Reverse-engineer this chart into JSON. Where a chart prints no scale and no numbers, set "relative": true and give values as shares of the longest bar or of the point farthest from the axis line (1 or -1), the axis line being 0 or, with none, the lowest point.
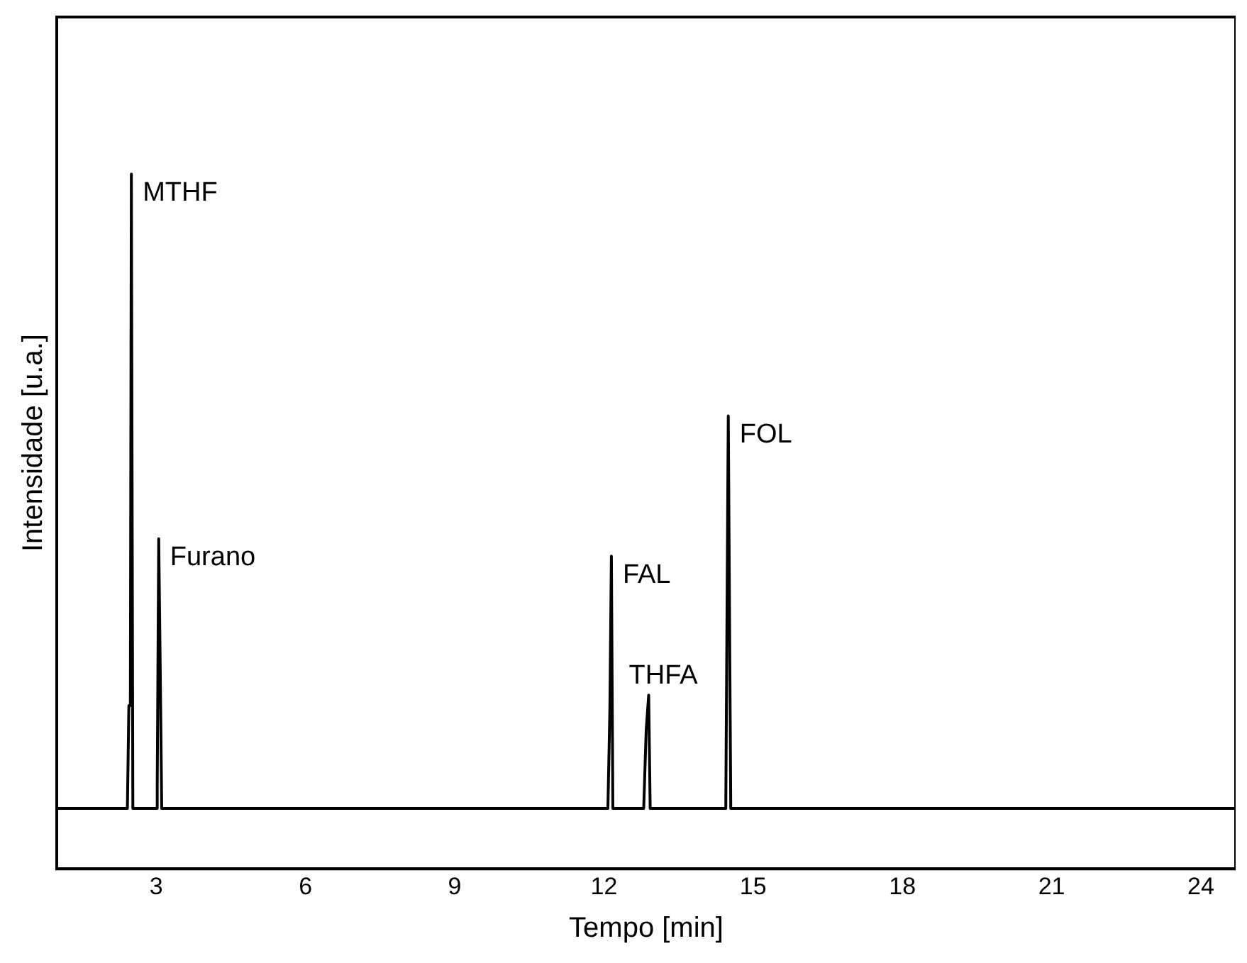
{
  "chart_data": {
    "type": "line",
    "relative": true,
    "xlabel": "Tempo [min]",
    "ylabel": "Intensidade [u.a.]",
    "xlim": [
      1,
      24.7
    ],
    "xticks": [
      3,
      6,
      9,
      12,
      15,
      18,
      21,
      24
    ],
    "grid": false,
    "legend": false,
    "marker": "none",
    "line_style": "solid",
    "series": [
      {
        "color": "#000000",
        "x": [
          1.0,
          2.42,
          2.45,
          2.48,
          2.5,
          2.53,
          2.55,
          3.0,
          3.02,
          3.05,
          3.08,
          3.11,
          4.0,
          12.08,
          12.12,
          12.15,
          12.18,
          12.8,
          12.85,
          12.9,
          12.93,
          14.45,
          14.5,
          14.55,
          24.7
        ],
        "values": [
          0.087,
          0.087,
          0.235,
          0.235,
          1,
          0.087,
          0.087,
          0.087,
          0.12,
          0.475,
          0.29,
          0.087,
          0.087,
          0.087,
          0.23,
          0.45,
          0.087,
          0.087,
          0.2,
          0.25,
          0.087,
          0.087,
          0.652,
          0.087,
          0.087
        ]
      }
    ],
    "annotations": [
      {
        "text": "MTHF",
        "x": 2.5,
        "y": 1
      },
      {
        "text": "Furano",
        "x": 3.05,
        "y": 0.475
      },
      {
        "text": "FAL",
        "x": 12.15,
        "y": 0.45
      },
      {
        "text": "THFA",
        "x": 12.9,
        "y": 0.25
      },
      {
        "text": "FOL",
        "x": 14.5,
        "y": 0.652
      }
    ]
  }
}
